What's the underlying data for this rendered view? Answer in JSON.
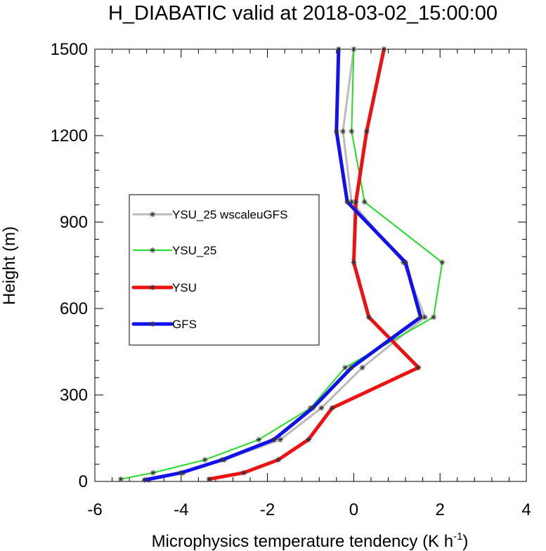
{
  "chart_data": {
    "type": "line",
    "title": "H_DIABATIC valid at 2018-03-02_15:00:00",
    "xlabel": "Microphysics temperature tendency (K h",
    "xlabel_sup": "-1",
    "xlabel_close": ")",
    "ylabel": "Height (m)",
    "xlim": [
      -6,
      4
    ],
    "ylim": [
      0,
      1500
    ],
    "xticks": [
      -6,
      -4,
      -2,
      0,
      2,
      4
    ],
    "xtick_labels": [
      "-6",
      "-4",
      "-2",
      "0",
      "2",
      "4"
    ],
    "yticks": [
      0,
      300,
      600,
      900,
      1200,
      1500
    ],
    "ytick_labels": [
      "0",
      "300",
      "600",
      "900",
      "1200",
      "1500"
    ],
    "grid": false,
    "legend_position": "left-center",
    "series": [
      {
        "name": "YSU_25 wscaleuGFS",
        "color": "#bbbbbb",
        "width": 3,
        "x": [
          -4.75,
          -3.95,
          -3.0,
          -1.7,
          -0.75,
          0.2,
          1.65,
          1.15,
          -0.05,
          -0.25,
          0.0
        ],
        "y": [
          5,
          30,
          75,
          145,
          255,
          395,
          570,
          760,
          970,
          1215,
          1500
        ]
      },
      {
        "name": "YSU_25",
        "color": "#22dd22",
        "width": 2,
        "x": [
          -5.4,
          -4.65,
          -3.45,
          -2.2,
          -1.0,
          -0.2,
          1.85,
          2.05,
          0.25,
          -0.05,
          0.0
        ],
        "y": [
          8,
          30,
          75,
          145,
          255,
          395,
          570,
          760,
          970,
          1215,
          1500
        ]
      },
      {
        "name": "YSU",
        "color": "#ee1111",
        "width": 5,
        "x": [
          -3.35,
          -2.55,
          -1.75,
          -1.05,
          -0.5,
          1.5,
          0.35,
          0.0,
          0.05,
          0.3,
          0.7
        ],
        "y": [
          8,
          30,
          75,
          145,
          255,
          395,
          570,
          760,
          970,
          1215,
          1500
        ]
      },
      {
        "name": "GFS",
        "color": "#1111ee",
        "width": 5,
        "x": [
          -4.85,
          -4.0,
          -3.05,
          -1.85,
          -0.95,
          -0.05,
          1.55,
          1.2,
          -0.15,
          -0.4,
          -0.35
        ],
        "y": [
          5,
          30,
          75,
          145,
          255,
          395,
          570,
          760,
          970,
          1215,
          1500
        ]
      }
    ]
  }
}
